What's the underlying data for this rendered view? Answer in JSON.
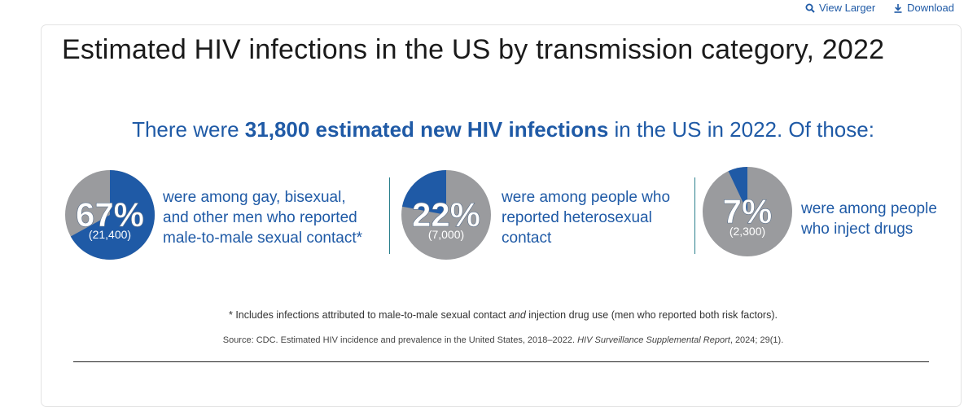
{
  "toolbar": {
    "view_larger_label": "View Larger",
    "download_label": "Download",
    "view_icon": "magnifier-icon",
    "download_icon": "download-icon"
  },
  "colors": {
    "accent_blue": "#1f5aa6",
    "pie_gray": "#9a9b9e",
    "divider_teal": "#2a7f8c"
  },
  "chart_data": {
    "type": "pie",
    "title": "Estimated HIV infections in the US by transmission category, 2022",
    "headline": {
      "prefix": "There were ",
      "bold": "31,800 estimated new HIV infections",
      "suffix": " in the US in 2022. Of those:"
    },
    "total_infections": 31800,
    "slices": [
      {
        "percent": 67,
        "percent_label": "67%",
        "count_label": "(21,400)",
        "count": 21400,
        "description": "were among gay, bisexual,\nand other men who reported\nmale-to-male sexual contact*"
      },
      {
        "percent": 22,
        "percent_label": "22%",
        "count_label": "(7,000)",
        "count": 7000,
        "description": "were among people who\nreported heterosexual\ncontact"
      },
      {
        "percent": 7,
        "percent_label": "7%",
        "count_label": "(2,300)",
        "count": 2300,
        "description": "were among people\nwho inject drugs"
      }
    ],
    "footnote": {
      "before": "* Includes infections attributed to male-to-male sexual contact ",
      "italic": "and",
      "after": " injection drug use (men who reported both risk factors)."
    },
    "source": {
      "before": "Source: CDC. Estimated HIV incidence and prevalence in the United States, 2018–2022. ",
      "italic": "HIV Surveillance Supplemental Report",
      "after": ", 2024; 29(1)."
    }
  }
}
